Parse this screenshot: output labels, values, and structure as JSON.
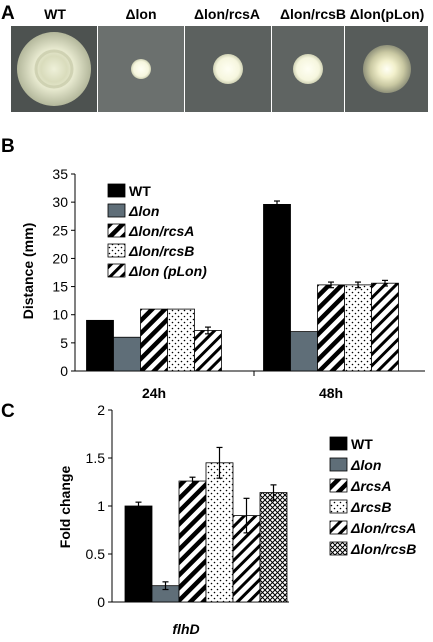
{
  "panels": {
    "A": {
      "letter": "A",
      "strains": [
        "WT",
        "Δlon",
        "Δlon/rcsA",
        "Δlon/rcsB",
        "Δlon(pLon)"
      ]
    },
    "B": {
      "letter": "B"
    },
    "C": {
      "letter": "C"
    }
  },
  "colors": {
    "plate_bg": "#555a58",
    "wt_fill": "#000000",
    "lon_fill": "#5f6e78",
    "white": "#ffffff"
  },
  "chart_data": [
    {
      "id": "B",
      "type": "bar",
      "ylabel": "Distance (mm)",
      "xlabel": "",
      "ylim": [
        0,
        35
      ],
      "yticks": [
        0,
        5,
        10,
        15,
        20,
        25,
        30,
        35
      ],
      "categories": [
        "24h",
        "48h"
      ],
      "legend_position": "top-left",
      "series": [
        {
          "name": "WT",
          "pattern": "solid-black",
          "values": [
            9.0,
            29.6
          ],
          "errors": [
            0,
            0.6
          ]
        },
        {
          "name": "Δlon",
          "pattern": "solid-gray",
          "values": [
            6.0,
            7.0
          ],
          "errors": [
            0,
            0
          ]
        },
        {
          "name": "Δlon/rcsA",
          "pattern": "diagonal-thick",
          "values": [
            11.0,
            15.3
          ],
          "errors": [
            0,
            0.5
          ]
        },
        {
          "name": "Δlon/rcsB",
          "pattern": "dots",
          "values": [
            11.0,
            15.3
          ],
          "errors": [
            0,
            0.5
          ]
        },
        {
          "name": "Δlon (pLon)",
          "pattern": "diagonal-thin",
          "values": [
            7.2,
            15.6
          ],
          "errors": [
            0.6,
            0.5
          ]
        }
      ]
    },
    {
      "id": "C",
      "type": "bar",
      "ylabel": "Fold change",
      "xlabel": "flhD",
      "ylim": [
        0,
        2
      ],
      "yticks": [
        0,
        0.5,
        1,
        1.5,
        2
      ],
      "ytick_labels": [
        "0",
        "0.5",
        "1",
        "1.5",
        "2"
      ],
      "categories": [
        "flhD"
      ],
      "legend_position": "right",
      "series": [
        {
          "name": "WT",
          "pattern": "solid-black",
          "values": [
            1.0
          ],
          "errors": [
            0.04
          ]
        },
        {
          "name": "Δlon",
          "pattern": "solid-gray",
          "values": [
            0.17
          ],
          "errors": [
            0.04
          ]
        },
        {
          "name": "ΔrcsA",
          "pattern": "diagonal-thick",
          "values": [
            1.26
          ],
          "errors": [
            0.04
          ]
        },
        {
          "name": "ΔrcsB",
          "pattern": "dots",
          "values": [
            1.45
          ],
          "errors": [
            0.16
          ]
        },
        {
          "name": "Δlon/rcsA",
          "pattern": "diagonal-thin",
          "values": [
            0.9
          ],
          "errors": [
            0.18
          ]
        },
        {
          "name": "Δlon/rcsB",
          "pattern": "crosshatch",
          "values": [
            1.14
          ],
          "errors": [
            0.08
          ]
        }
      ]
    }
  ]
}
